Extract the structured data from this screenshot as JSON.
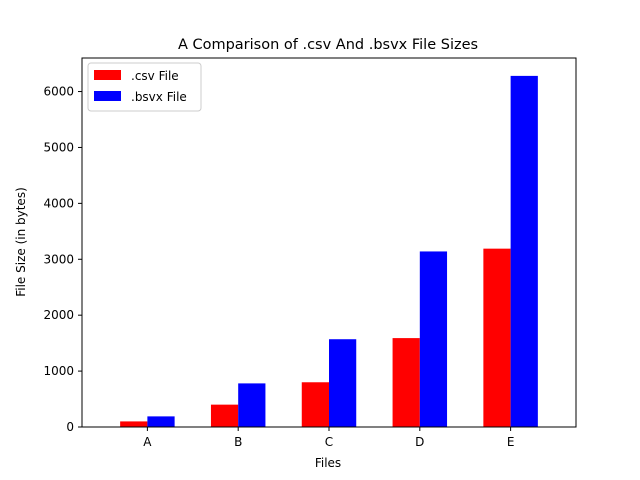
{
  "chart_data": {
    "type": "bar",
    "title": "A Comparison of .csv And .bsvx File Sizes",
    "xlabel": "Files",
    "ylabel": "File Size (in bytes)",
    "categories": [
      "A",
      "B",
      "C",
      "D",
      "E"
    ],
    "series": [
      {
        "name": ".csv File",
        "color": "#ff0000",
        "values": [
          100,
          400,
          800,
          1590,
          3190
        ]
      },
      {
        "name": ".bsvx File",
        "color": "#0000ff",
        "values": [
          190,
          780,
          1570,
          3140,
          6280
        ]
      }
    ],
    "ylim": [
      0,
      6600
    ],
    "yticks": [
      0,
      1000,
      2000,
      3000,
      4000,
      5000,
      6000
    ],
    "legend": "top-left",
    "grid": false
  }
}
